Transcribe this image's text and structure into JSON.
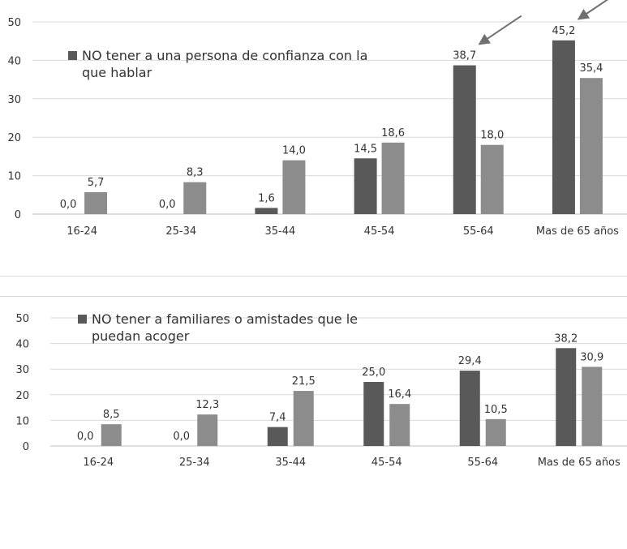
{
  "chart_data": [
    {
      "type": "bar",
      "categories": [
        "16-24",
        "25-34",
        "35-44",
        "45-54",
        "55-64",
        "Mas de 65 años"
      ],
      "series": [
        {
          "name": "NO tener a una persona de confianza con la que hablar",
          "values": [
            0.0,
            0.0,
            1.6,
            14.5,
            38.7,
            45.2
          ],
          "color": "#595959"
        },
        {
          "values": [
            5.7,
            8.3,
            14.0,
            18.6,
            18.0,
            35.4
          ],
          "color": "#8c8c8c"
        }
      ],
      "data_labels": [
        [
          "0,0",
          "0,0",
          "1,6",
          "14,5",
          "38,7",
          "45,2"
        ],
        [
          "5,7",
          "8,3",
          "14,0",
          "18,6",
          "18,0",
          "35,4"
        ]
      ],
      "yticks": [
        "0",
        "10",
        "20",
        "30",
        "40",
        "50"
      ],
      "ylim": [
        0,
        50
      ],
      "legend": {
        "label": "NO tener a una persona de confianza con la que hablar",
        "line1": "NO tener a una persona de confianza con la",
        "line2": "que hablar",
        "position": "top-left"
      },
      "annotations": [
        {
          "type": "arrow",
          "target": "38,7"
        },
        {
          "type": "arrow",
          "target": "45,2"
        }
      ],
      "grid": true,
      "title": "",
      "xlabel": "",
      "ylabel": ""
    },
    {
      "type": "bar",
      "categories": [
        "16-24",
        "25-34",
        "35-44",
        "45-54",
        "55-64",
        "Mas de 65 años"
      ],
      "series": [
        {
          "name": "NO tener a familiares o amistades que le puedan acoger",
          "values": [
            0.0,
            0.0,
            7.4,
            25.0,
            29.4,
            38.2
          ],
          "color": "#595959"
        },
        {
          "values": [
            8.5,
            12.3,
            21.5,
            16.4,
            10.5,
            30.9
          ],
          "color": "#8c8c8c"
        }
      ],
      "data_labels": [
        [
          "0,0",
          "0,0",
          "7,4",
          "25,0",
          "29,4",
          "38,2"
        ],
        [
          "8,5",
          "12,3",
          "21,5",
          "16,4",
          "10,5",
          "30,9"
        ]
      ],
      "yticks": [
        "0",
        "10",
        "20",
        "30",
        "40",
        "50"
      ],
      "ylim": [
        0,
        50
      ],
      "legend": {
        "label": "NO tener a familiares o amistades que le puedan acoger",
        "line1": "NO tener a familiares o amistades que le",
        "line2": "puedan acoger",
        "position": "top-left"
      },
      "grid": true,
      "title": "",
      "xlabel": "",
      "ylabel": ""
    }
  ]
}
